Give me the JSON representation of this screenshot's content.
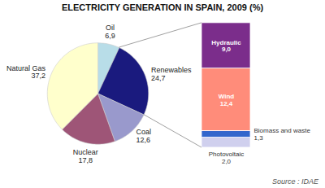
{
  "chart_data": [
    {
      "type": "pie",
      "title": "ELECTRICITY GENERATION IN SPAIN, 2009 (%)",
      "categories": [
        "Oil",
        "Renewables",
        "Coal",
        "Nuclear",
        "Natural Gas"
      ],
      "values": [
        6.9,
        24.7,
        12.6,
        17.8,
        37.2
      ],
      "value_labels": [
        "6,9",
        "24,7",
        "12,6",
        "17,8",
        "37,2"
      ],
      "colors": [
        "#b8dde8",
        "#1a1a7e",
        "#9999cc",
        "#9e5577",
        "#ffffcc"
      ],
      "data_labels": true,
      "annotations": [
        "Source : IDAE"
      ]
    },
    {
      "type": "bar",
      "stacked": true,
      "categories": [
        "Photovoltaic",
        "Biomass and waste",
        "Wind",
        "Hydraulic"
      ],
      "values": [
        2.0,
        1.3,
        12.4,
        9.0
      ],
      "value_labels": [
        "2,0",
        "1,3",
        "12,4",
        "9,0"
      ],
      "colors": [
        "#d0d0ee",
        "#3366cc",
        "#ff8c7a",
        "#7b2d8b"
      ],
      "data_labels": true,
      "ylim": [
        0,
        25
      ],
      "tick_labels": false
    }
  ]
}
